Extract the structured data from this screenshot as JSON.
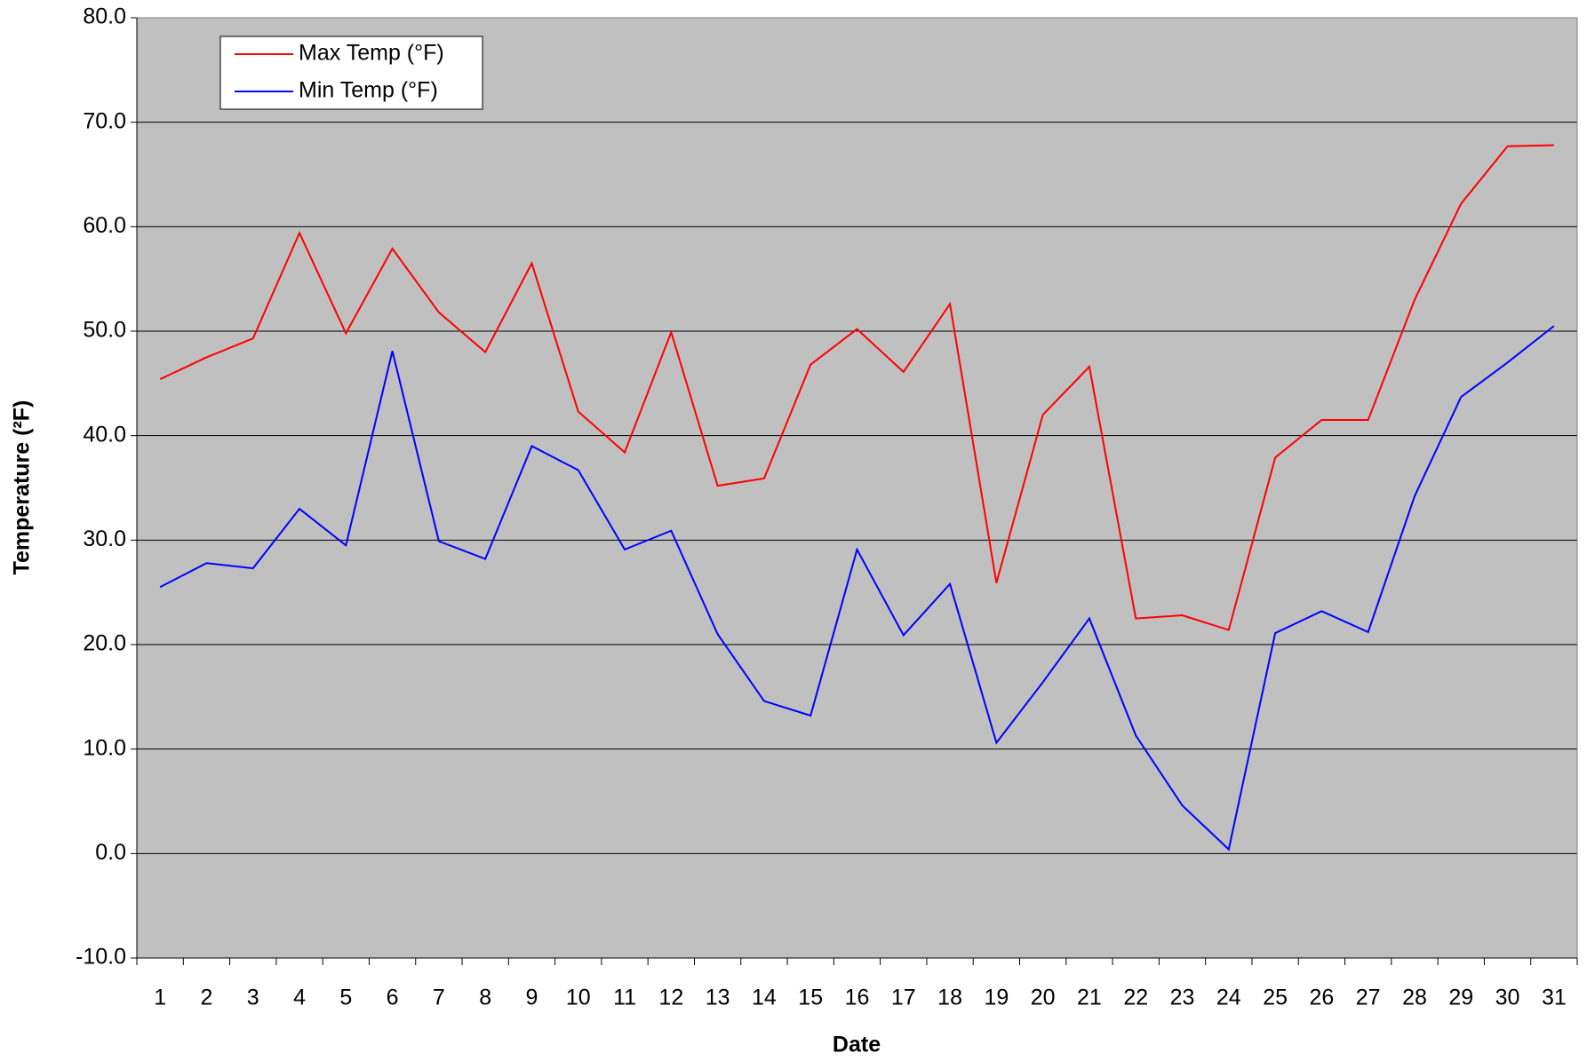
{
  "chart_data": {
    "type": "line",
    "x_label": "Date",
    "y_label": "Temperature (²F)",
    "categories": [
      "1",
      "2",
      "3",
      "4",
      "5",
      "6",
      "7",
      "8",
      "9",
      "10",
      "11",
      "12",
      "13",
      "14",
      "15",
      "16",
      "17",
      "18",
      "19",
      "20",
      "21",
      "22",
      "23",
      "24",
      "25",
      "26",
      "27",
      "28",
      "29",
      "30",
      "31"
    ],
    "series": [
      {
        "name": "Max Temp (°F)",
        "color": "#ff0000",
        "values": [
          45.4,
          47.5,
          49.3,
          59.4,
          49.8,
          57.9,
          51.8,
          48.0,
          56.5,
          42.3,
          38.4,
          49.9,
          35.2,
          35.9,
          46.8,
          50.2,
          46.1,
          52.6,
          25.9,
          42.0,
          46.6,
          22.5,
          22.8,
          21.4,
          37.9,
          41.5,
          41.5,
          53.0,
          62.2,
          67.7,
          67.8
        ]
      },
      {
        "name": "Min Temp (°F)",
        "color": "#0000ff",
        "values": [
          25.5,
          27.8,
          27.3,
          33.0,
          29.5,
          48.1,
          29.9,
          28.2,
          39.0,
          36.7,
          29.1,
          30.9,
          21.0,
          14.6,
          13.2,
          29.1,
          20.9,
          25.8,
          10.6,
          16.4,
          22.5,
          11.3,
          4.6,
          0.4,
          21.1,
          23.2,
          21.2,
          34.2,
          43.7,
          47.0,
          50.5
        ]
      }
    ],
    "ylim": [
      -10,
      80
    ],
    "yticks": [
      {
        "value": -10,
        "label": "-10.0"
      },
      {
        "value": 0,
        "label": "0.0"
      },
      {
        "value": 10,
        "label": "10.0"
      },
      {
        "value": 20,
        "label": "20.0"
      },
      {
        "value": 30,
        "label": "30.0"
      },
      {
        "value": 40,
        "label": "40.0"
      },
      {
        "value": 50,
        "label": "50.0"
      },
      {
        "value": 60,
        "label": "60.0"
      },
      {
        "value": 70,
        "label": "70.0"
      },
      {
        "value": 80,
        "label": "80.0"
      }
    ],
    "grid": true,
    "legend": "top-left",
    "plot_background": "#c0c0c0"
  }
}
